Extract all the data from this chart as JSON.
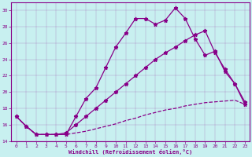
{
  "xlabel": "Windchill (Refroidissement éolien,°C)",
  "bg_color": "#c8f0f0",
  "line_color": "#880088",
  "xlim": [
    -0.5,
    23.5
  ],
  "ylim": [
    14,
    31
  ],
  "xticks": [
    0,
    1,
    2,
    3,
    4,
    5,
    6,
    7,
    8,
    9,
    10,
    11,
    12,
    13,
    14,
    15,
    16,
    17,
    18,
    19,
    20,
    21,
    22,
    23
  ],
  "yticks": [
    14,
    16,
    18,
    20,
    22,
    24,
    26,
    28,
    30
  ],
  "line1_x": [
    0,
    1,
    2,
    3,
    4,
    5,
    6,
    7,
    8,
    9,
    10,
    11,
    12,
    13,
    14,
    15,
    16,
    17,
    18,
    19,
    20,
    21,
    22,
    23
  ],
  "line1_y": [
    17.0,
    15.8,
    14.8,
    14.8,
    14.8,
    14.8,
    17.0,
    19.2,
    20.5,
    23.0,
    25.5,
    27.2,
    29.0,
    29.0,
    28.3,
    28.8,
    30.3,
    29.0,
    26.5,
    24.5,
    25.0,
    22.5,
    21.0,
    18.5
  ],
  "line2_x": [
    0,
    1,
    2,
    3,
    4,
    5,
    6,
    7,
    8,
    9,
    10,
    11,
    12,
    13,
    14,
    15,
    16,
    17,
    18,
    19,
    20,
    21,
    22,
    23
  ],
  "line2_y": [
    17.0,
    15.8,
    14.8,
    14.8,
    14.8,
    15.0,
    16.0,
    17.0,
    18.0,
    19.0,
    20.0,
    21.0,
    22.0,
    23.0,
    24.0,
    24.8,
    25.5,
    26.3,
    27.0,
    27.5,
    24.8,
    22.8,
    21.0,
    18.8
  ],
  "line3_x": [
    0,
    1,
    2,
    3,
    4,
    5,
    6,
    7,
    8,
    9,
    10,
    11,
    12,
    13,
    14,
    15,
    16,
    17,
    18,
    19,
    20,
    21,
    22,
    23
  ],
  "line3_y": [
    17.0,
    15.8,
    14.8,
    14.8,
    14.8,
    14.8,
    15.0,
    15.2,
    15.5,
    15.8,
    16.1,
    16.5,
    16.8,
    17.2,
    17.5,
    17.8,
    18.0,
    18.3,
    18.5,
    18.7,
    18.8,
    18.9,
    19.0,
    18.5
  ]
}
